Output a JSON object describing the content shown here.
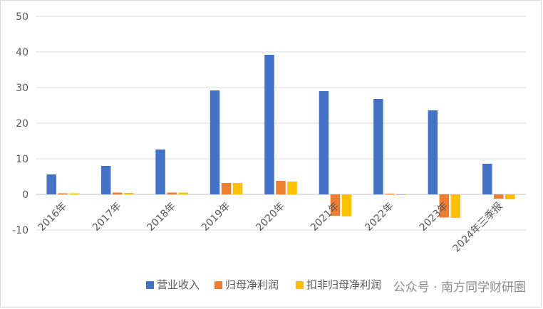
{
  "chart_data": {
    "type": "bar",
    "categories": [
      "2016年",
      "2017年",
      "2018年",
      "2019年",
      "2020年",
      "2021年",
      "2022年",
      "2023年",
      "2024年三季报"
    ],
    "series": [
      {
        "name": "营业收入",
        "color": "#4472c4",
        "values": [
          5.6,
          8.0,
          12.6,
          29.2,
          39.2,
          29.0,
          26.8,
          23.6,
          8.6
        ]
      },
      {
        "name": "归母净利润",
        "color": "#ed7d31",
        "values": [
          0.3,
          0.5,
          0.5,
          3.2,
          3.8,
          -6.0,
          0.0,
          -6.5,
          -1.2
        ]
      },
      {
        "name": "扣非归母净利润",
        "color": "#ffc000",
        "values": [
          0.3,
          0.4,
          0.5,
          3.2,
          3.6,
          -6.2,
          -0.2,
          -6.6,
          -1.4
        ]
      }
    ],
    "ylim": [
      -10,
      50
    ],
    "yticks": [
      -10,
      0,
      10,
      20,
      30,
      40,
      50
    ],
    "grid": true,
    "legend": "bottom",
    "watermark": "公众号 · 南方同学财研圈"
  }
}
